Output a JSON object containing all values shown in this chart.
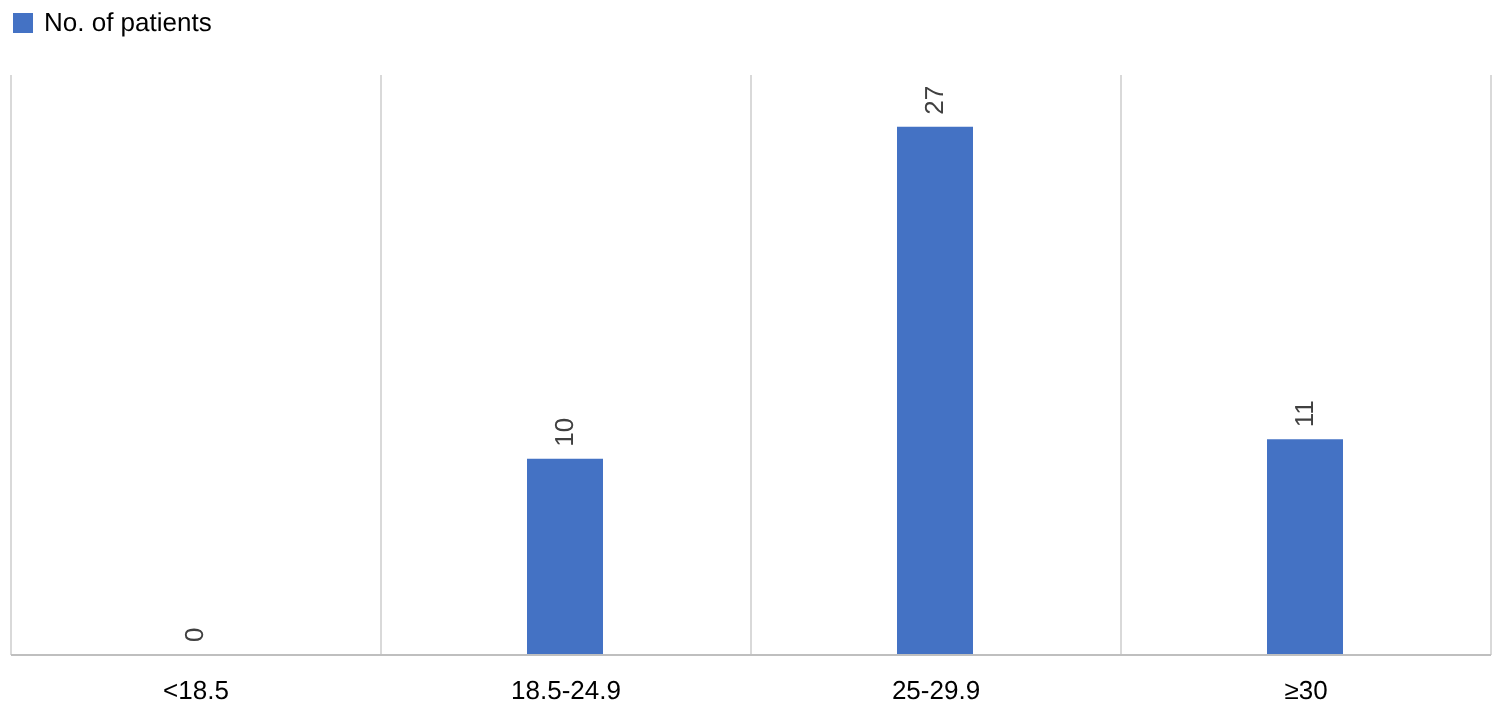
{
  "chart_data": {
    "type": "bar",
    "categories": [
      "<18.5",
      "18.5-24.9",
      "25-29.9",
      "≥30"
    ],
    "series": [
      {
        "name": "No. of patients",
        "color": "#4472c4",
        "values": [
          0,
          10,
          27,
          11
        ]
      }
    ],
    "data_labels": true,
    "grid": "x",
    "legend": "top",
    "tick_labels": "x"
  }
}
